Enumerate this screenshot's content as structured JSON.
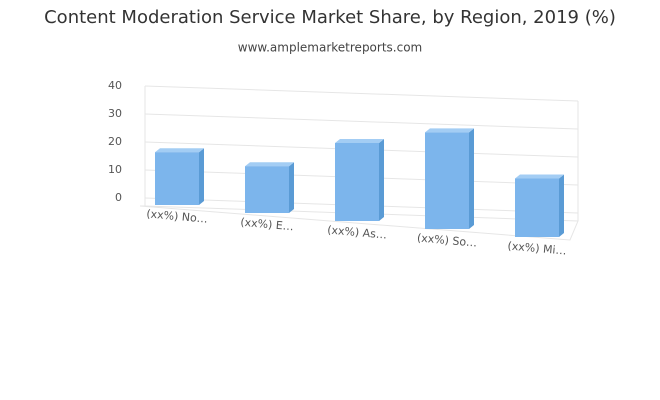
{
  "chart_data": {
    "type": "bar",
    "title": "Content Moderation Service Market Share, by Region, 2019 (%)",
    "subtitle": "www.amplemarketreports.com",
    "categories": [
      "(xx%) No…",
      "(xx%) E…",
      "(xx%) As…",
      "(xx%) So…",
      "(xx%) Mi…"
    ],
    "values": [
      16,
      13,
      20,
      23,
      13
    ],
    "color": "#7cb5ec",
    "ylim": [
      0,
      40
    ],
    "yticks": [
      0,
      10,
      20,
      30,
      40
    ],
    "grid": true
  }
}
